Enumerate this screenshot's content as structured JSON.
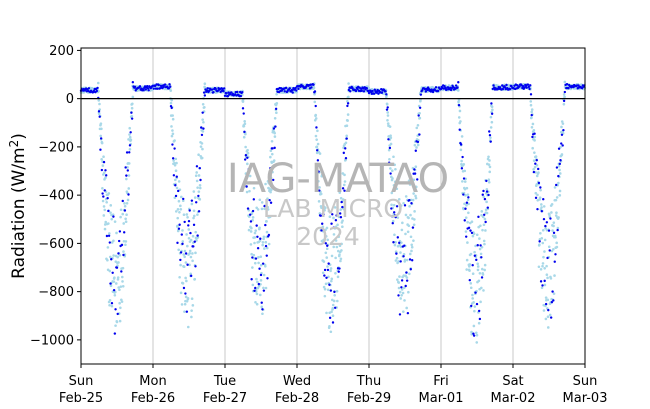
{
  "chart_data": {
    "type": "scatter",
    "title": "",
    "xlabel": "",
    "ylabel_main": "Radiation (W/m",
    "ylabel_sup": "2",
    "ylabel_tail": ")",
    "ylim": [
      -1100,
      210
    ],
    "yticks": [
      200,
      0,
      -200,
      -400,
      -600,
      -800,
      -1000
    ],
    "ytick_labels": [
      "200",
      "0",
      "−200",
      "−400",
      "−600",
      "−800",
      "−1000"
    ],
    "xlim_days": [
      0,
      7
    ],
    "xticks": [
      {
        "day": "Sun",
        "date": "Feb-25"
      },
      {
        "day": "Mon",
        "date": "Feb-26"
      },
      {
        "day": "Tue",
        "date": "Feb-27"
      },
      {
        "day": "Wed",
        "date": "Feb-28"
      },
      {
        "day": "Thu",
        "date": "Feb-29"
      },
      {
        "day": "Fri",
        "date": "Mar-01"
      },
      {
        "day": "Sat",
        "date": "Mar-02"
      },
      {
        "day": "Sun",
        "date": "Mar-03"
      }
    ],
    "grid": "vertical",
    "reference_line_y": 0,
    "watermark": [
      "IAG-MATAO",
      "LAB MICRO",
      "2024"
    ],
    "colors": {
      "series_dark": "#0000ee",
      "series_light": "#a8d8e8",
      "grid": "#c8c8c8",
      "axis": "#000000"
    },
    "daily_profile": [
      {
        "night_level": 35,
        "min_value": -720,
        "light_min": -950
      },
      {
        "night_level": 50,
        "min_value": -700,
        "light_min": -920
      },
      {
        "night_level": 20,
        "min_value": -720,
        "light_min": -860
      },
      {
        "night_level": 50,
        "min_value": -720,
        "light_min": -940
      },
      {
        "night_level": 30,
        "min_value": -700,
        "light_min": -830
      },
      {
        "night_level": 45,
        "min_value": -740,
        "light_min": -1005
      },
      {
        "night_level": 50,
        "min_value": -700,
        "light_min": -910
      }
    ],
    "series": [
      {
        "name": "",
        "color": "#a8d8e8",
        "kind": "light"
      },
      {
        "name": "",
        "color": "#0000ee",
        "kind": "dark"
      }
    ]
  }
}
